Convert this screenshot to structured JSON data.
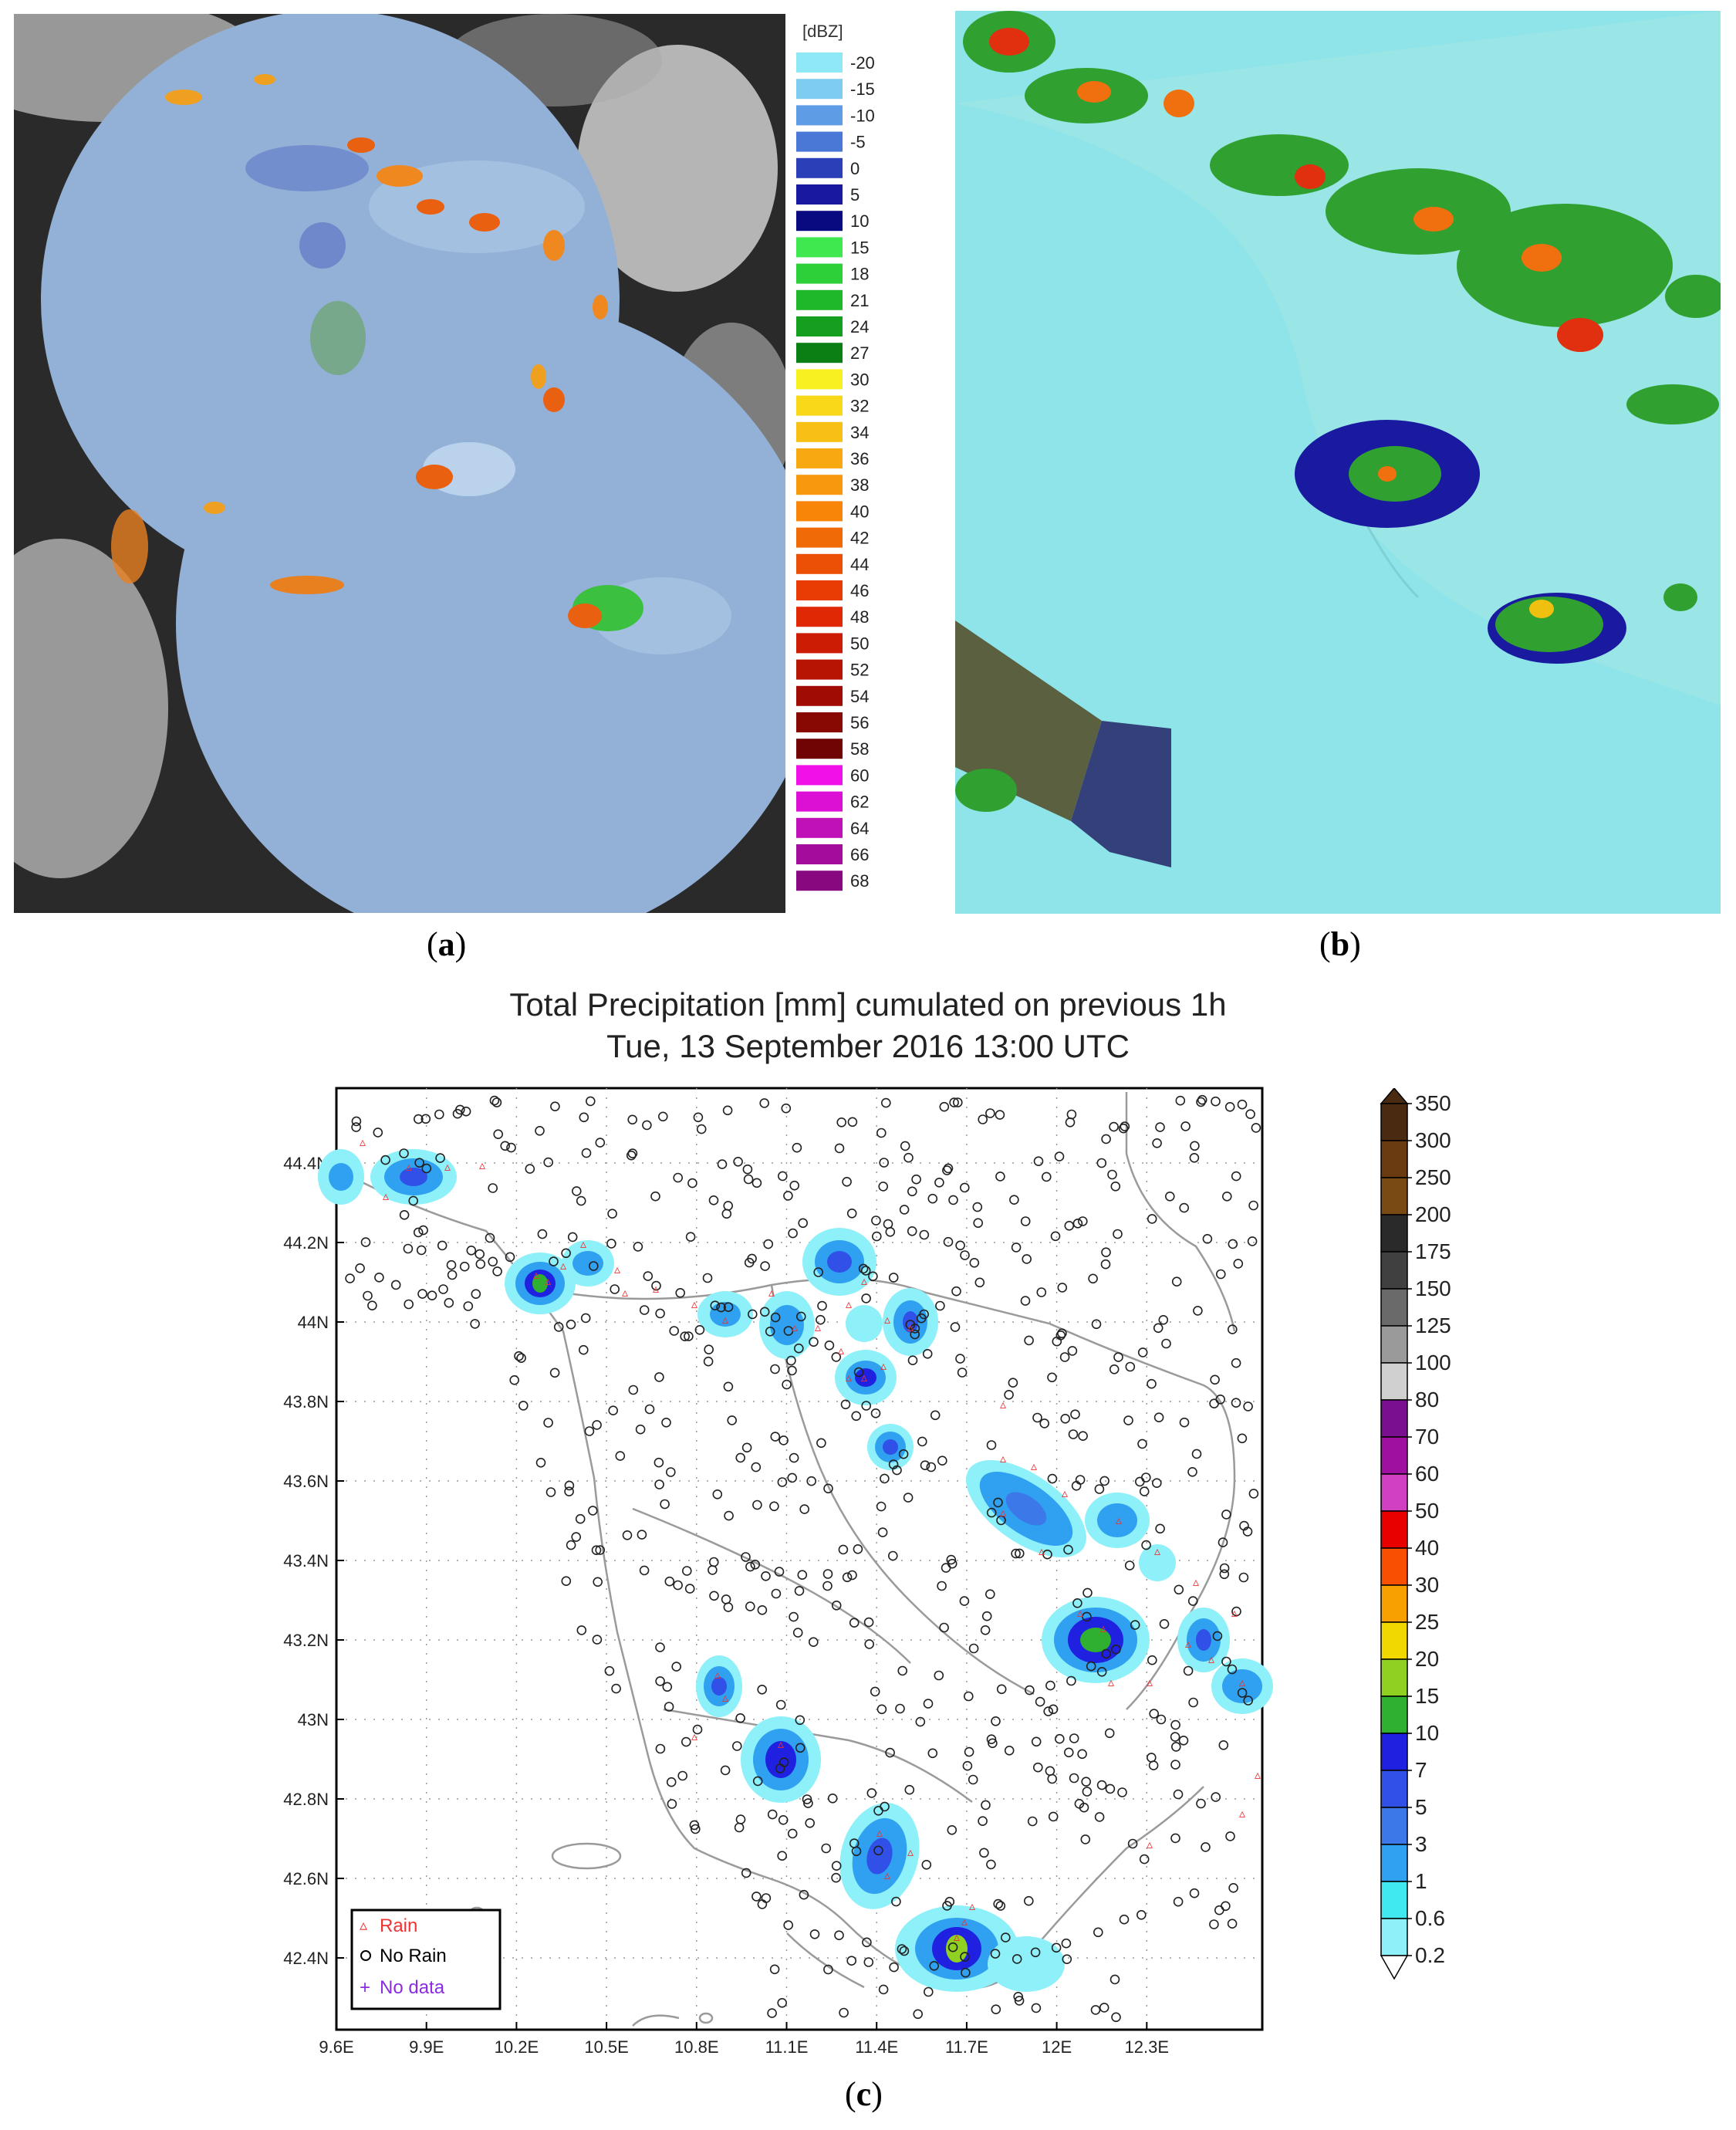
{
  "panel_a": {
    "caption_letter": "a",
    "unit_label": "[dBZ]",
    "scale": [
      {
        "label": "-20",
        "color": "#8fe8f5"
      },
      {
        "label": "-15",
        "color": "#7ecdf0"
      },
      {
        "label": "-10",
        "color": "#5e9ce6"
      },
      {
        "label": "-5",
        "color": "#4a78d6"
      },
      {
        "label": "0",
        "color": "#2a3fb8"
      },
      {
        "label": "5",
        "color": "#1818a0"
      },
      {
        "label": "10",
        "color": "#0a0a80"
      },
      {
        "label": "15",
        "color": "#3fe84f"
      },
      {
        "label": "18",
        "color": "#2ed03a"
      },
      {
        "label": "21",
        "color": "#1eb82a"
      },
      {
        "label": "24",
        "color": "#14a01e"
      },
      {
        "label": "27",
        "color": "#0a8014"
      },
      {
        "label": "30",
        "color": "#f8f020"
      },
      {
        "label": "32",
        "color": "#f8d818"
      },
      {
        "label": "34",
        "color": "#f8c014"
      },
      {
        "label": "36",
        "color": "#f8a810"
      },
      {
        "label": "38",
        "color": "#f8980c"
      },
      {
        "label": "40",
        "color": "#f88408"
      },
      {
        "label": "42",
        "color": "#f06a08"
      },
      {
        "label": "44",
        "color": "#ec5006"
      },
      {
        "label": "46",
        "color": "#e83c04"
      },
      {
        "label": "48",
        "color": "#e02804"
      },
      {
        "label": "50",
        "color": "#cc1c04"
      },
      {
        "label": "52",
        "color": "#b81404"
      },
      {
        "label": "54",
        "color": "#a00c04"
      },
      {
        "label": "56",
        "color": "#880804"
      },
      {
        "label": "58",
        "color": "#700404"
      },
      {
        "label": "60",
        "color": "#f010e8"
      },
      {
        "label": "62",
        "color": "#dc10d4"
      },
      {
        "label": "64",
        "color": "#c010b8"
      },
      {
        "label": "66",
        "color": "#a40c9c"
      },
      {
        "label": "68",
        "color": "#880880"
      }
    ]
  },
  "panel_b": {
    "caption_letter": "b"
  },
  "panel_c": {
    "caption_letter": "c",
    "title_line1": "Total Precipitation [mm] cumulated on previous 1h",
    "title_line2": "Tue, 13 September 2016 13:00 UTC",
    "x_ticks": [
      "9.6E",
      "9.9E",
      "10.2E",
      "10.5E",
      "10.8E",
      "11.1E",
      "11.4E",
      "11.7E",
      "12E",
      "12.3E"
    ],
    "y_ticks": [
      "44.4N",
      "44.2N",
      "44N",
      "43.8N",
      "43.6N",
      "43.4N",
      "43.2N",
      "43N",
      "42.8N",
      "42.6N",
      "42.4N"
    ],
    "legend": {
      "rain": "Rain",
      "no_rain": "No Rain",
      "no_data": "No data"
    },
    "colorbar": [
      {
        "label": "350",
        "color": "#4a2a10"
      },
      {
        "label": "300",
        "color": "#6a3a10"
      },
      {
        "label": "250",
        "color": "#7a4a14"
      },
      {
        "label": "200",
        "color": "#2a2a2a"
      },
      {
        "label": "175",
        "color": "#404040"
      },
      {
        "label": "150",
        "color": "#6a6a6a"
      },
      {
        "label": "125",
        "color": "#9a9a9a"
      },
      {
        "label": "100",
        "color": "#d0d0d0"
      },
      {
        "label": "80",
        "color": "#7a1090"
      },
      {
        "label": "70",
        "color": "#a010a0"
      },
      {
        "label": "60",
        "color": "#d040c0"
      },
      {
        "label": "50",
        "color": "#e80000"
      },
      {
        "label": "40",
        "color": "#f85000"
      },
      {
        "label": "30",
        "color": "#f8a000"
      },
      {
        "label": "25",
        "color": "#f0d800"
      },
      {
        "label": "20",
        "color": "#90d020"
      },
      {
        "label": "15",
        "color": "#30b030"
      },
      {
        "label": "10",
        "color": "#2020e0"
      },
      {
        "label": "7",
        "color": "#3050e8"
      },
      {
        "label": "5",
        "color": "#3c78e8"
      },
      {
        "label": "3",
        "color": "#30a0f0"
      },
      {
        "label": "1",
        "color": "#40e8f0"
      },
      {
        "label": "0.6",
        "color": "#8ef0f8"
      },
      {
        "label": "0.2",
        "color": "#ffffff"
      }
    ]
  }
}
